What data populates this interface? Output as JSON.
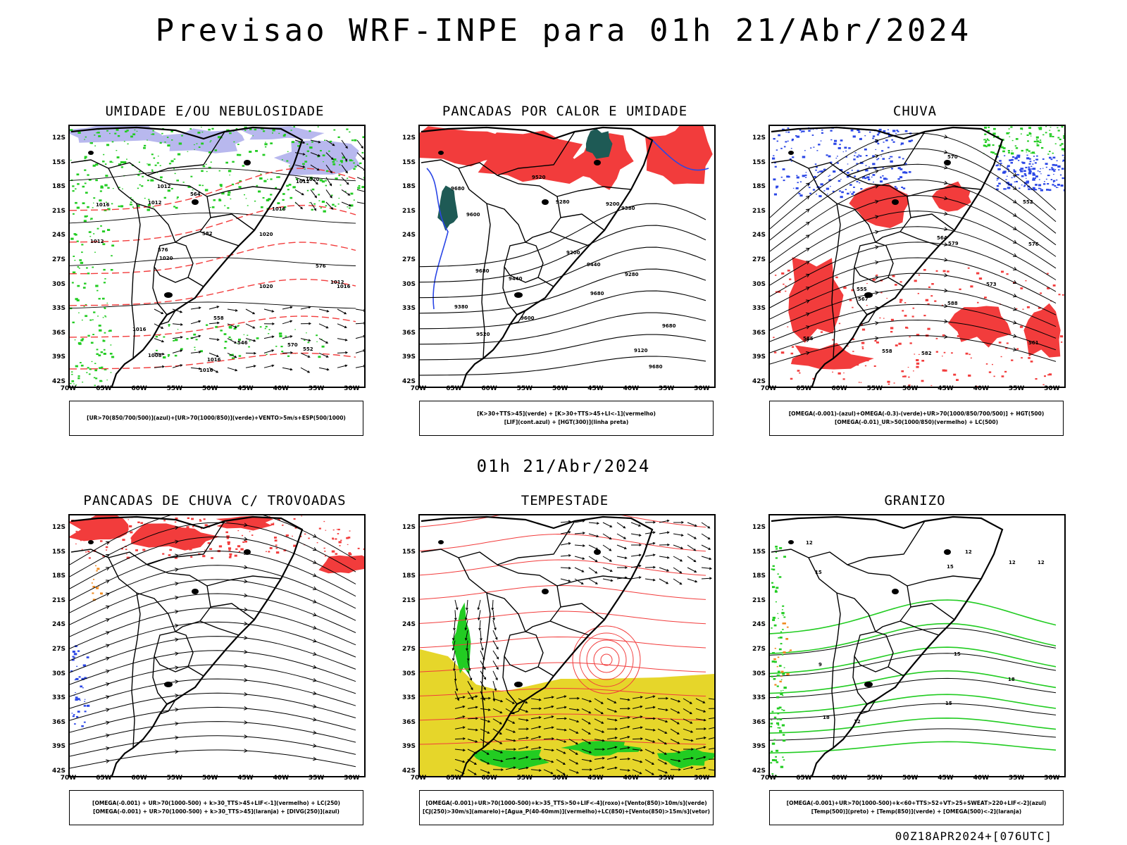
{
  "title": "Previsao WRF-INPE  para 01h 21/Abr/2024",
  "mid_date": "01h 21/Abr/2024",
  "run_info": "00Z18APR2024+[076UTC]",
  "lat_labels": [
    "12S",
    "15S",
    "18S",
    "21S",
    "24S",
    "27S",
    "30S",
    "33S",
    "36S",
    "39S",
    "42S"
  ],
  "lon_labels": [
    "70W",
    "65W",
    "60W",
    "55W",
    "50W",
    "45W",
    "40W",
    "35W",
    "30W"
  ],
  "colors": {
    "red": "#f23c3c",
    "green": "#22cc22",
    "blue": "#2a46e6",
    "lavender": "#b8b8ee",
    "yellow": "#e6d62a",
    "dark_teal": "#1e5a55",
    "orange": "#f08a1e"
  },
  "panels": [
    {
      "title": "UMIDADE E/OU NEBULOSIDADE",
      "legend": [
        "[UR>70(850/700/500)](azul)+[UR>70(1000/850)](verde)+VENTO>5m/s+ESP(500/1000)"
      ],
      "contour_labels": [
        "1016",
        "1012",
        "1020",
        "1016",
        "1012",
        "1016",
        "1020",
        "1020",
        "1020",
        "1016",
        "1012",
        "1012",
        "1016",
        "1016",
        "1012",
        "1008",
        "576",
        "564",
        "552",
        "546",
        "570",
        "576",
        "582",
        "558"
      ]
    },
    {
      "title": "PANCADAS POR CALOR E UMIDADE",
      "legend": [
        "[K>30+TTS>45](verde) + [K>30+TTS>45+LI<-1](vermelho)",
        "[LIF](cont.azul) + [HGT(300)](linha preta)"
      ],
      "contour_labels": [
        "9680",
        "9680",
        "9680",
        "9680",
        "9680",
        "9600",
        "9520",
        "9440",
        "9380",
        "9280",
        "9200",
        "9120",
        "9600",
        "9520",
        "9440",
        "9380",
        "9280",
        "9200"
      ]
    },
    {
      "title": "CHUVA",
      "legend": [
        "[OMEGA(-0.001)-(azul)+OMEGA(-0.3)-(verde)+UR>70(1000/850/700/500)] + HGT(500)",
        "[OMEGA(-0.01)_UR>50(1000/850)(vermelho) + LC(500)"
      ],
      "contour_labels": [
        "588",
        "585",
        "582",
        "579",
        "576",
        "573",
        "570",
        "567",
        "564",
        "561",
        "558",
        "555",
        "552"
      ]
    },
    {
      "title": "PANCADAS DE CHUVA C/ TROVOADAS",
      "legend": [
        "[OMEGA(-0.001) + UR>70(1000-500) + k>30_TTS>45+LIF<-1](vermelho) + LC(250)",
        "[OMEGA(-0.001) + UR>70(1000-500) + k>30_TTS>45](laranja) + [DIVG(250)](azul)"
      ],
      "contour_labels": []
    },
    {
      "title": "TEMPESTADE",
      "legend": [
        "[OMEGA(-0.001)+UR>70(1000-500)+k>35_TTS>50+LIF<-4](roxo)+[Vento(850)>10m/s](verde)",
        "[CJ(250)>30m/s](amarelo)+[Agua_P(40-60mm)](vermelho)+LC(850)+[Vento(850)>15m/s](vetor)"
      ],
      "contour_labels": []
    },
    {
      "title": "GRANIZO",
      "legend": [
        "[OMEGA(-0.001)+UR>70(1000-500)+k<60+TTS>52+VT>25+SWEAT>220+LIF<-2](azul)",
        "[Temp(500)](preto) + [Temp(850)](verde) + [OMEGA(500)<-2](laranja)"
      ],
      "contour_labels": [
        "12",
        "15",
        "12",
        "15",
        "12",
        "15",
        "18",
        "12",
        "15",
        "18",
        "12",
        "9"
      ]
    }
  ]
}
